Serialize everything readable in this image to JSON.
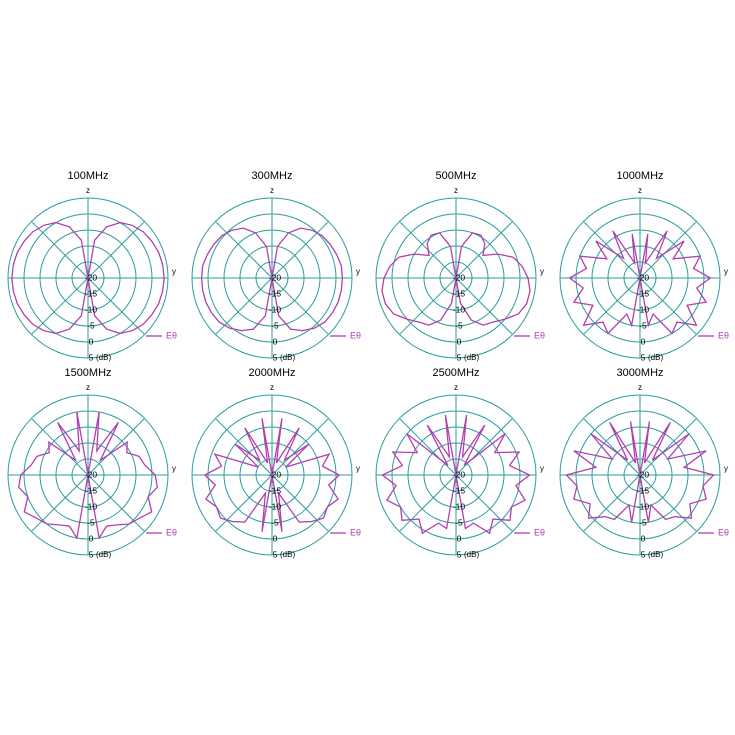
{
  "chart_data": [
    {
      "type": "polar",
      "title": "100MHz",
      "zlabel": "z",
      "ylabel": "y",
      "r_unit": "(dB)",
      "rlim": [
        -20,
        5
      ],
      "rticks": [
        -20,
        -15,
        -10,
        -5,
        0,
        5
      ],
      "theta": [
        0,
        10,
        20,
        30,
        40,
        50,
        60,
        70,
        80,
        90,
        100,
        110,
        120,
        130,
        140,
        150,
        160,
        170,
        180,
        190,
        200,
        210,
        220,
        230,
        240,
        250,
        260,
        270,
        280,
        290,
        300,
        310,
        320,
        330,
        340,
        350
      ],
      "series": [
        {
          "name": "Eθ",
          "color": "#b040b0",
          "values": [
            -20,
            -8,
            -3,
            0,
            1.5,
            2.5,
            3,
            3.5,
            3.7,
            3.8,
            3.7,
            3.5,
            3,
            2.5,
            1.5,
            0,
            -3,
            -8,
            -20,
            -8,
            -3,
            0,
            1.5,
            2.5,
            3,
            3.5,
            3.7,
            3.8,
            3.7,
            3.5,
            3,
            2.5,
            1.5,
            0,
            -3,
            -8
          ]
        }
      ]
    },
    {
      "type": "polar",
      "title": "300MHz",
      "zlabel": "z",
      "ylabel": "y",
      "r_unit": "(dB)",
      "rlim": [
        -20,
        5
      ],
      "rticks": [
        -20,
        -15,
        -10,
        -5,
        0,
        5
      ],
      "theta": [
        0,
        10,
        20,
        30,
        40,
        50,
        60,
        70,
        80,
        90,
        100,
        110,
        120,
        130,
        140,
        150,
        160,
        170,
        180,
        190,
        200,
        210,
        220,
        230,
        240,
        250,
        260,
        270,
        280,
        290,
        300,
        310,
        320,
        330,
        340,
        350
      ],
      "series": [
        {
          "name": "Eθ",
          "color": "#b040b0",
          "values": [
            -20,
            -10,
            -5,
            -2,
            -0.5,
            0.5,
            1,
            1.5,
            2,
            2,
            2,
            2,
            1.8,
            1.5,
            0.5,
            -1,
            -3,
            -8,
            -20,
            -8,
            -3,
            -1,
            0.5,
            1.5,
            1.8,
            2,
            2,
            2,
            2,
            1.5,
            1,
            0.5,
            -0.5,
            -2,
            -5,
            -10
          ]
        }
      ]
    },
    {
      "type": "polar",
      "title": "500MHz",
      "zlabel": "z",
      "ylabel": "y",
      "r_unit": "(dB)",
      "rlim": [
        -20,
        5
      ],
      "rticks": [
        -20,
        -15,
        -10,
        -5,
        0,
        5
      ],
      "theta": [
        0,
        10,
        20,
        30,
        40,
        50,
        60,
        70,
        80,
        90,
        100,
        110,
        120,
        130,
        140,
        150,
        160,
        170,
        180,
        190,
        200,
        210,
        220,
        230,
        240,
        250,
        260,
        270,
        280,
        290,
        300,
        310,
        320,
        330,
        340,
        350
      ],
      "series": [
        {
          "name": "Eθ",
          "color": "#b040b0",
          "values": [
            -20,
            -10,
            -5,
            -4.5,
            -6,
            -9,
            -5,
            -1,
            1,
            2.5,
            3.5,
            3.5,
            2.5,
            0,
            -2,
            -3,
            -6,
            -12,
            -20,
            -12,
            -6,
            -3,
            -2,
            0,
            2.5,
            3.5,
            3.5,
            2.5,
            1,
            -1,
            -5,
            -9,
            -6,
            -4.5,
            -5,
            -10
          ]
        }
      ]
    },
    {
      "type": "polar",
      "title": "1000MHz",
      "zlabel": "z",
      "ylabel": "y",
      "r_unit": "(dB)",
      "rlim": [
        -20,
        5
      ],
      "rticks": [
        -20,
        -15,
        -10,
        -5,
        0,
        5
      ],
      "theta": [
        0,
        10,
        20,
        30,
        40,
        50,
        60,
        70,
        80,
        90,
        100,
        110,
        120,
        130,
        140,
        150,
        160,
        170,
        180,
        190,
        200,
        210,
        220,
        230,
        240,
        250,
        260,
        270,
        280,
        290,
        300,
        310,
        320,
        330,
        340,
        350
      ],
      "series": [
        {
          "name": "Eθ",
          "color": "#b040b0",
          "values": [
            -20,
            -6,
            -15,
            -3,
            -12,
            -2,
            -8,
            0,
            -3,
            2,
            -2,
            2,
            -3,
            3,
            -2,
            0,
            -8,
            -5,
            -20,
            -5,
            -8,
            0,
            -2,
            3,
            -3,
            2,
            -2,
            2,
            -3,
            0,
            -8,
            -2,
            -12,
            -3,
            -15,
            -6
          ]
        }
      ]
    },
    {
      "type": "polar",
      "title": "1500MHz",
      "zlabel": "z",
      "ylabel": "y",
      "r_unit": "(dB)",
      "rlim": [
        -20,
        5
      ],
      "rticks": [
        -20,
        -15,
        -10,
        -5,
        0,
        5
      ],
      "theta": [
        0,
        10,
        20,
        30,
        40,
        50,
        60,
        70,
        80,
        90,
        100,
        110,
        120,
        130,
        140,
        150,
        160,
        170,
        180,
        190,
        200,
        210,
        220,
        230,
        240,
        250,
        260,
        270,
        280,
        290,
        300,
        310,
        320,
        330,
        340,
        350
      ],
      "series": [
        {
          "name": "Eθ",
          "color": "#b040b0",
          "values": [
            -20,
            0,
            -12,
            -1,
            -14,
            -4,
            -6,
            -3,
            -2,
            1,
            2,
            0,
            3,
            1,
            0,
            -2,
            -3,
            0,
            -20,
            0,
            -3,
            -2,
            0,
            1,
            3,
            0,
            2,
            1,
            -2,
            -3,
            -6,
            -4,
            -14,
            -1,
            -12,
            0
          ]
        }
      ]
    },
    {
      "type": "polar",
      "title": "2000MHz",
      "zlabel": "z",
      "ylabel": "y",
      "r_unit": "(dB)",
      "rlim": [
        -20,
        5
      ],
      "rticks": [
        -20,
        -15,
        -10,
        -5,
        0,
        5
      ],
      "theta": [
        0,
        10,
        20,
        30,
        40,
        50,
        60,
        70,
        80,
        90,
        100,
        110,
        120,
        130,
        140,
        150,
        160,
        170,
        180,
        190,
        200,
        210,
        220,
        230,
        240,
        250,
        260,
        270,
        280,
        290,
        300,
        310,
        320,
        330,
        340,
        350
      ],
      "series": [
        {
          "name": "Eθ",
          "color": "#b040b0",
          "values": [
            -20,
            -2,
            -16,
            -3,
            -14,
            -5,
            -15,
            -1,
            -4,
            1,
            -2,
            2,
            0,
            1,
            -1,
            -3,
            -14,
            -2,
            -20,
            -2,
            -14,
            -3,
            -1,
            1,
            0,
            2,
            -2,
            1,
            -4,
            -1,
            -15,
            -5,
            -14,
            -3,
            -16,
            -2
          ]
        }
      ]
    },
    {
      "type": "polar",
      "title": "2500MHz",
      "zlabel": "z",
      "ylabel": "y",
      "r_unit": "(dB)",
      "rlim": [
        -20,
        5
      ],
      "rticks": [
        -20,
        -15,
        -10,
        -5,
        0,
        5
      ],
      "theta": [
        0,
        10,
        20,
        30,
        40,
        50,
        60,
        70,
        80,
        90,
        100,
        110,
        120,
        130,
        140,
        150,
        160,
        170,
        180,
        190,
        200,
        210,
        220,
        230,
        240,
        250,
        260,
        270,
        280,
        290,
        300,
        310,
        320,
        330,
        340,
        350
      ],
      "series": [
        {
          "name": "Eθ",
          "color": "#b040b0",
          "values": [
            -20,
            -1,
            -14,
            -2,
            -16,
            0,
            -6,
            1,
            -3,
            3,
            -1,
            3,
            0,
            2,
            -2,
            1,
            -4,
            -3,
            -20,
            -3,
            -4,
            1,
            -2,
            2,
            0,
            3,
            -1,
            3,
            -3,
            1,
            -6,
            0,
            -16,
            -2,
            -14,
            -1
          ]
        }
      ]
    },
    {
      "type": "polar",
      "title": "3000MHz",
      "zlabel": "z",
      "ylabel": "y",
      "r_unit": "(dB)",
      "rlim": [
        -20,
        5
      ],
      "rticks": [
        -20,
        -15,
        -10,
        -5,
        0,
        5
      ],
      "theta": [
        0,
        10,
        20,
        30,
        40,
        50,
        60,
        70,
        80,
        90,
        100,
        110,
        120,
        130,
        140,
        150,
        160,
        170,
        180,
        190,
        200,
        210,
        220,
        230,
        240,
        250,
        260,
        270,
        280,
        290,
        300,
        310,
        320,
        330,
        340,
        350
      ],
      "series": [
        {
          "name": "Eθ",
          "color": "#b040b0",
          "values": [
            -20,
            -3,
            -16,
            -1,
            -14,
            0,
            -10,
            2,
            -6,
            3,
            0,
            2,
            -2,
            1,
            -3,
            -4,
            -10,
            -5,
            -20,
            -5,
            -10,
            -4,
            -3,
            1,
            -2,
            2,
            0,
            3,
            -6,
            2,
            -10,
            0,
            -14,
            -1,
            -16,
            -3
          ]
        }
      ]
    }
  ]
}
